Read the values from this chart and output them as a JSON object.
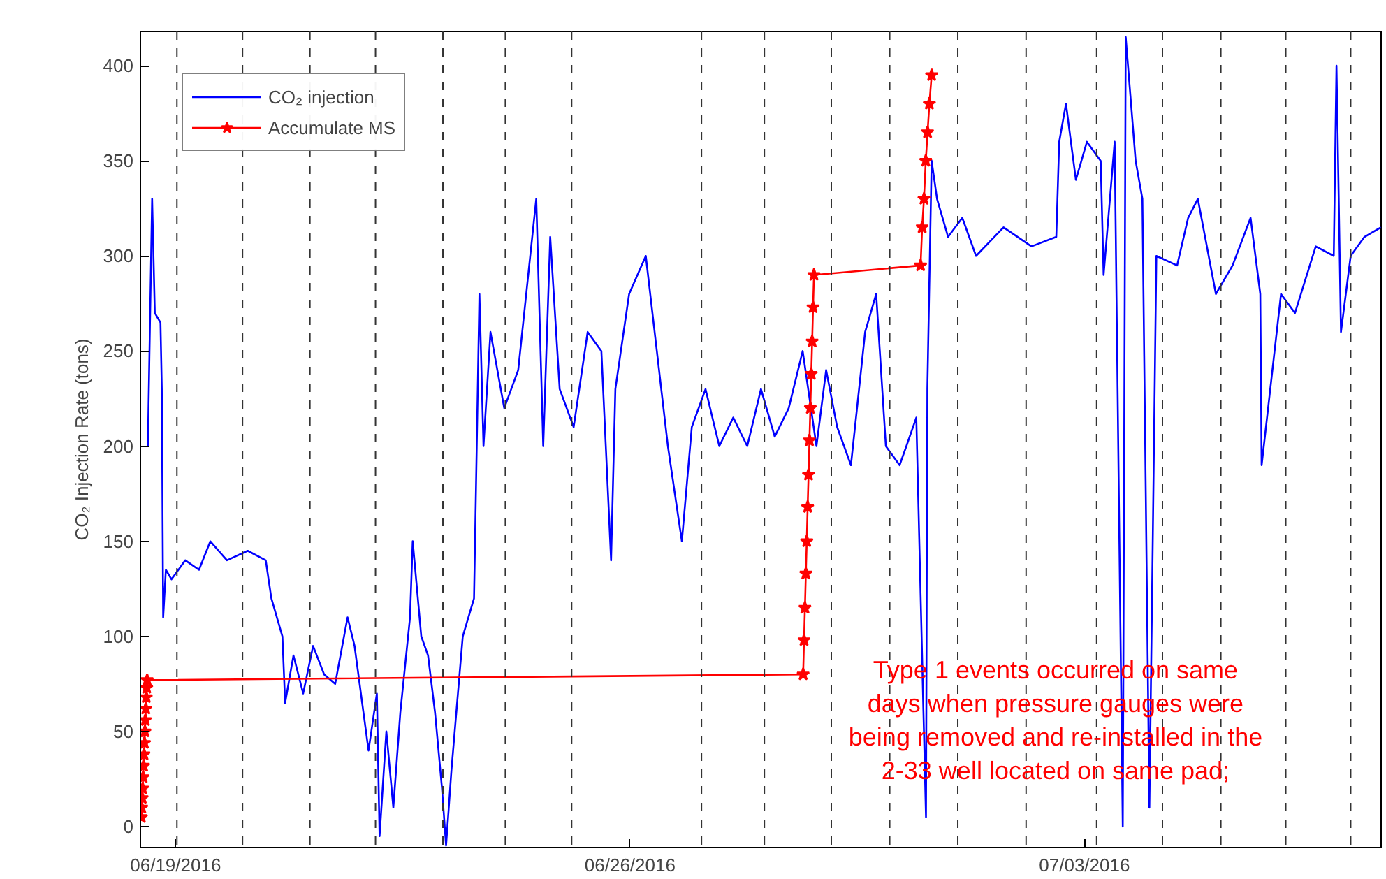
{
  "chart_data": {
    "type": "line",
    "ylabel": "CO₂ Injection Rate (tons)",
    "xlim": [
      "2016-06-18T11:00",
      "2016-07-07T13:40"
    ],
    "ylim": [
      -11,
      418
    ],
    "xticks": [
      {
        "value": "2016-06-19",
        "label": "06/19/2016"
      },
      {
        "value": "2016-06-26",
        "label": "06/26/2016"
      },
      {
        "value": "2016-07-03",
        "label": "07/03/2016"
      }
    ],
    "yticks": [
      0,
      50,
      100,
      150,
      200,
      250,
      300,
      350,
      400
    ],
    "grid": false,
    "legend": "top left",
    "line_style": "solid",
    "series": [
      {
        "name": "CO₂ injection",
        "color": "#0000ff",
        "marker": "none",
        "x": [
          "2016-06-18T13:45",
          "2016-06-18T15:20",
          "2016-06-18T16:20",
          "2016-06-18T18:25",
          "2016-06-18T18:55",
          "2016-06-18T19:25",
          "2016-06-18T20:25",
          "2016-06-18T22:30",
          "2016-06-19T03:35",
          "2016-06-19T08:40",
          "2016-06-19T12:50",
          "2016-06-19T19:00",
          "2016-06-20T02:40",
          "2016-06-20T09:20",
          "2016-06-20T11:25",
          "2016-06-20T15:30",
          "2016-06-20T16:30",
          "2016-06-20T19:35",
          "2016-06-20T23:10",
          "2016-06-21T02:50",
          "2016-06-21T06:55",
          "2016-06-21T11:00",
          "2016-06-21T15:35",
          "2016-06-21T18:10",
          "2016-06-21T23:20",
          "2016-06-22T02:25",
          "2016-06-22T03:25",
          "2016-06-22T05:55",
          "2016-06-22T08:30",
          "2016-06-22T11:05",
          "2016-06-22T14:40",
          "2016-06-22T15:40",
          "2016-06-22T18:50",
          "2016-06-22T21:20",
          "2016-06-22T23:55",
          "2016-06-23T02:30",
          "2016-06-23T04:00",
          "2016-06-23T06:00",
          "2016-06-23T10:10",
          "2016-06-23T14:20",
          "2016-06-23T16:20",
          "2016-06-23T17:50",
          "2016-06-23T20:25",
          "2016-06-24T01:30",
          "2016-06-24T06:40",
          "2016-06-24T13:20",
          "2016-06-24T15:55",
          "2016-06-24T18:30",
          "2016-06-24T22:00",
          "2016-06-25T03:10",
          "2016-06-25T08:20",
          "2016-06-25T13:25",
          "2016-06-25T17:00",
          "2016-06-25T18:35",
          "2016-06-25T23:40",
          "2016-06-26T05:50",
          "2016-06-26T09:55",
          "2016-06-26T14:00",
          "2016-06-26T19:10",
          "2016-06-26T22:50",
          "2016-06-27T03:55",
          "2016-06-27T09:00",
          "2016-06-27T14:10",
          "2016-06-27T19:20",
          "2016-06-28T00:25",
          "2016-06-28T05:30",
          "2016-06-28T10:40",
          "2016-06-28T15:50",
          "2016-06-28T20:55",
          "2016-06-29T00:30",
          "2016-06-29T04:35",
          "2016-06-29T09:40",
          "2016-06-29T14:55",
          "2016-06-29T19:00",
          "2016-06-29T22:35",
          "2016-06-30T03:40",
          "2016-06-30T06:10",
          "2016-06-30T09:50",
          "2016-06-30T13:25",
          "2016-06-30T13:55",
          "2016-06-30T15:30",
          "2016-06-30T17:30",
          "2016-06-30T21:35",
          "2016-07-01T02:50",
          "2016-07-01T07:55",
          "2016-07-01T18:05",
          "2016-07-02T04:25",
          "2016-07-02T13:35",
          "2016-07-02T14:40",
          "2016-07-02T17:10",
          "2016-07-02T20:50",
          "2016-07-03T00:55",
          "2016-07-03T06:00",
          "2016-07-03T07:05",
          "2016-07-03T11:10",
          "2016-07-03T14:10",
          "2016-07-03T15:15",
          "2016-07-03T18:55",
          "2016-07-03T21:25",
          "2016-07-04T00:00",
          "2016-07-04T02:35",
          "2016-07-04T10:15",
          "2016-07-04T14:20",
          "2016-07-04T17:55",
          "2016-07-05T00:35",
          "2016-07-05T06:45",
          "2016-07-05T13:25",
          "2016-07-05T17:00",
          "2016-07-05T17:30",
          "2016-07-06T00:40",
          "2016-07-06T05:50",
          "2016-07-06T13:30",
          "2016-07-06T20:10",
          "2016-07-06T21:10",
          "2016-07-06T22:50",
          "2016-07-07T02:25",
          "2016-07-07T07:30",
          "2016-07-07T13:35"
        ],
        "values": [
          200,
          330,
          270,
          265,
          230,
          110,
          135,
          130,
          140,
          135,
          150,
          140,
          145,
          140,
          120,
          100,
          65,
          90,
          70,
          95,
          80,
          75,
          110,
          95,
          40,
          70,
          -5,
          50,
          10,
          60,
          110,
          150,
          100,
          90,
          60,
          20,
          -10,
          30,
          100,
          120,
          280,
          200,
          260,
          220,
          240,
          330,
          200,
          310,
          230,
          210,
          260,
          250,
          140,
          230,
          280,
          300,
          250,
          200,
          150,
          210,
          230,
          200,
          215,
          200,
          230,
          205,
          220,
          250,
          200,
          240,
          210,
          190,
          260,
          280,
          200,
          190,
          200,
          215,
          5,
          230,
          350,
          330,
          310,
          320,
          300,
          315,
          305,
          310,
          360,
          380,
          340,
          360,
          350,
          290,
          360,
          0,
          415,
          350,
          330,
          10,
          300,
          295,
          320,
          330,
          280,
          295,
          320,
          280,
          190,
          280,
          270,
          305,
          300,
          400,
          260,
          300,
          310,
          315
        ]
      },
      {
        "name": "Accumulate MS",
        "color": "#ff0000",
        "marker": "star",
        "x": [
          "2016-06-18T11:20",
          "2016-06-18T11:30",
          "2016-06-18T11:40",
          "2016-06-18T11:50",
          "2016-06-18T12:00",
          "2016-06-18T12:10",
          "2016-06-18T12:20",
          "2016-06-18T12:30",
          "2016-06-18T12:40",
          "2016-06-18T12:50",
          "2016-06-18T13:00",
          "2016-06-18T13:10",
          "2016-06-18T13:20",
          "2016-06-18T13:30",
          "2016-06-28T16:00",
          "2016-06-28T16:20",
          "2016-06-28T16:40",
          "2016-06-28T17:00",
          "2016-06-28T17:20",
          "2016-06-28T17:40",
          "2016-06-28T18:00",
          "2016-06-28T18:20",
          "2016-06-28T18:40",
          "2016-06-28T19:00",
          "2016-06-28T19:20",
          "2016-06-28T19:40",
          "2016-06-28T20:00",
          "2016-06-30T11:25",
          "2016-06-30T12:00",
          "2016-06-30T12:40",
          "2016-06-30T13:20",
          "2016-06-30T14:00",
          "2016-06-30T14:40",
          "2016-06-30T15:30"
        ],
        "values": [
          5,
          10,
          15,
          20,
          26,
          32,
          38,
          44,
          50,
          56,
          62,
          68,
          73,
          77,
          80,
          98,
          115,
          133,
          150,
          168,
          185,
          203,
          220,
          238,
          255,
          273,
          290,
          295,
          315,
          330,
          350,
          365,
          380,
          395
        ]
      }
    ],
    "ref_lines": [
      {
        "axis": "x",
        "value": "2016-06-19T00:30",
        "line_style": "dashed"
      },
      {
        "axis": "x",
        "value": "2016-06-20T00:45",
        "line_style": "dashed"
      },
      {
        "axis": "x",
        "value": "2016-06-21T01:40",
        "line_style": "dashed"
      },
      {
        "axis": "x",
        "value": "2016-06-22T01:55",
        "line_style": "dashed"
      },
      {
        "axis": "x",
        "value": "2016-06-23T02:50",
        "line_style": "dashed"
      },
      {
        "axis": "x",
        "value": "2016-06-24T01:55",
        "line_style": "dashed"
      },
      {
        "axis": "x",
        "value": "2016-06-25T02:25",
        "line_style": "dashed"
      },
      {
        "axis": "x",
        "value": "2016-06-27T02:25",
        "line_style": "dashed"
      },
      {
        "axis": "x",
        "value": "2016-06-28T01:40",
        "line_style": "dashed"
      },
      {
        "axis": "x",
        "value": "2016-06-29T02:25",
        "line_style": "dashed"
      },
      {
        "axis": "x",
        "value": "2016-06-30T00:00",
        "line_style": "dashed"
      },
      {
        "axis": "x",
        "value": "2016-07-01T01:10",
        "line_style": "dashed"
      },
      {
        "axis": "x",
        "value": "2016-07-02T02:25",
        "line_style": "dashed"
      },
      {
        "axis": "x",
        "value": "2016-07-03T04:30",
        "line_style": "dashed"
      },
      {
        "axis": "x",
        "value": "2016-07-04T04:50",
        "line_style": "dashed"
      },
      {
        "axis": "x",
        "value": "2016-07-05T02:25",
        "line_style": "dashed"
      },
      {
        "axis": "x",
        "value": "2016-07-06T02:25",
        "line_style": "dashed"
      },
      {
        "axis": "x",
        "value": "2016-07-07T02:25",
        "line_style": "dashed"
      }
    ],
    "annotations": [
      "Type 1 events occurred on same\ndays when pressure gauges were\nbeing removed and re-installed in the\n2-33 well located on same pad;"
    ]
  }
}
